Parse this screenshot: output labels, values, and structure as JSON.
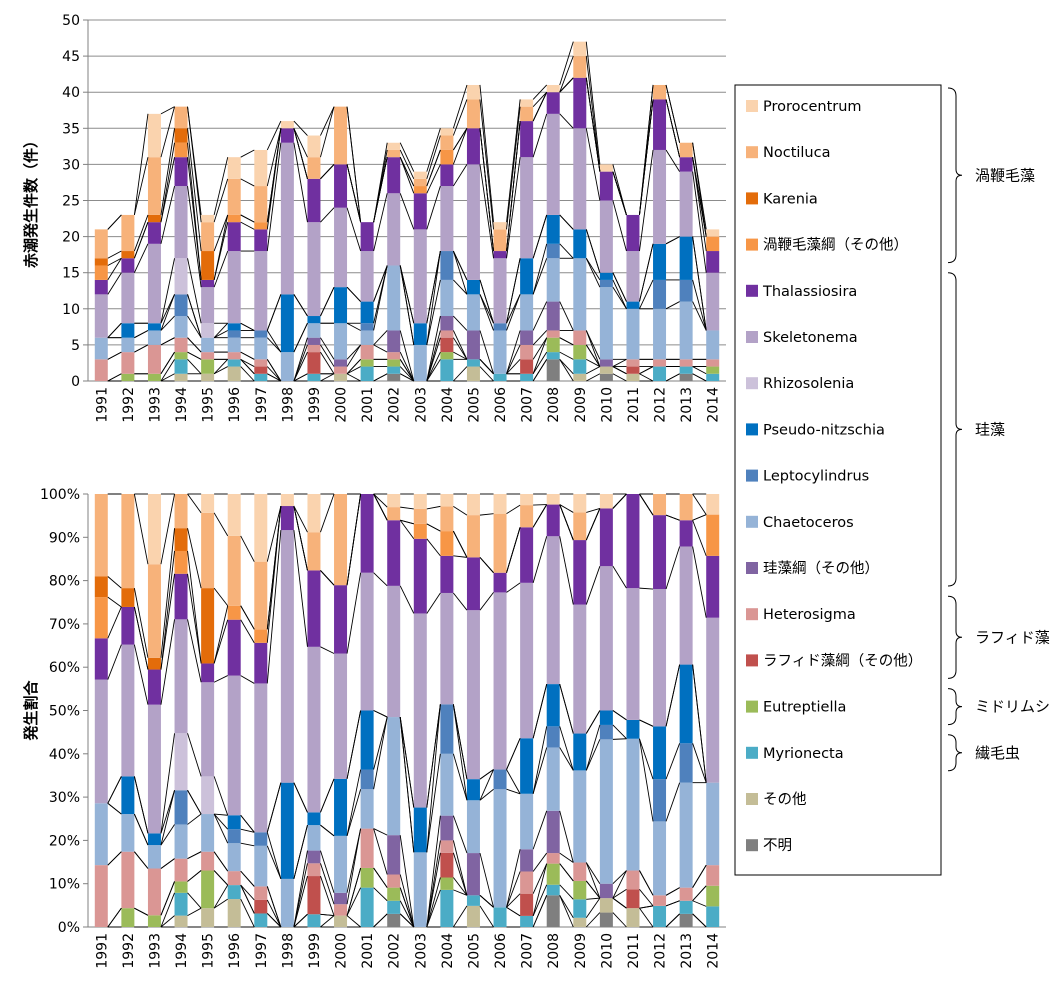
{
  "colors": {
    "Prorocentrum": "#FAD3AE",
    "Noctiluca": "#F7B27A",
    "Karenia": "#E36C0A",
    "渦鞭毛藻綱（その他）": "#F79646",
    "Thalassiosira": "#7030A0",
    "Skeletonema": "#B3A2C7",
    "Rhizosolenia": "#CCC1DA",
    "Pseudo-nitzschia": "#0070C0",
    "Leptocylindrus": "#4F81BD",
    "Chaetoceros": "#95B3D7",
    "珪藻綱（その他）": "#8064A2",
    "Heterosigma": "#DA9694",
    "ラフィド藻綱（その他）": "#C0504D",
    "Eutreptiella": "#9BBB59",
    "Myrionecta": "#4BACC6",
    "その他": "#C4BD97",
    "不明": "#7F7F7F"
  },
  "legend": {
    "items": [
      "Prorocentrum",
      "Noctiluca",
      "Karenia",
      "渦鞭毛藻綱（その他）",
      "Thalassiosira",
      "Skeletonema",
      "Rhizosolenia",
      "Pseudo-nitzschia",
      "Leptocylindrus",
      "Chaetoceros",
      "珪藻綱（その他）",
      "Heterosigma",
      "ラフィド藻綱（その他）",
      "Eutreptiella",
      "Myrionecta",
      "その他",
      "不明"
    ],
    "groups": [
      {
        "label": "渦鞭毛藻",
        "first": 0,
        "last": 3
      },
      {
        "label": "珪藻",
        "first": 4,
        "last": 10
      },
      {
        "label": "ラフィド藻",
        "first": 11,
        "last": 12
      },
      {
        "label": "ミドリムシ",
        "first": 13,
        "last": 13
      },
      {
        "label": "繊毛虫",
        "first": 14,
        "last": 14
      }
    ]
  },
  "chart_data": [
    {
      "type": "bar",
      "stacked": true,
      "ylabel": "赤潮発生件数（件）",
      "ylim": [
        0,
        50
      ],
      "yticks": [
        "0",
        "5",
        "10",
        "15",
        "20",
        "25",
        "30",
        "35",
        "40",
        "45",
        "50"
      ],
      "grid": true,
      "categories": [
        "1991",
        "1992",
        "1993",
        "1994",
        "1995",
        "1996",
        "1997",
        "1998",
        "1999",
        "2000",
        "2001",
        "2002",
        "2003",
        "2004",
        "2005",
        "2006",
        "2007",
        "2008",
        "2009",
        "2010",
        "2011",
        "2012",
        "2013",
        "2014"
      ],
      "series": [
        {
          "name": "不明",
          "values": [
            0,
            0,
            0,
            0,
            0,
            0,
            0,
            0,
            0,
            0,
            0,
            1,
            0,
            0,
            0,
            0,
            0,
            3,
            0,
            1,
            0,
            0,
            1,
            0
          ]
        },
        {
          "name": "その他",
          "values": [
            0,
            0,
            0,
            1,
            1,
            2,
            0,
            0,
            0,
            1,
            0,
            0,
            0,
            0,
            2,
            0,
            0,
            0,
            1,
            1,
            1,
            0,
            0,
            0
          ]
        },
        {
          "name": "Myrionecta",
          "values": [
            0,
            0,
            0,
            2,
            0,
            1,
            1,
            0,
            1,
            0,
            2,
            1,
            0,
            3,
            1,
            1,
            1,
            1,
            2,
            0,
            0,
            2,
            1,
            1
          ]
        },
        {
          "name": "Eutreptiella",
          "values": [
            0,
            1,
            1,
            1,
            2,
            0,
            0,
            0,
            0,
            0,
            1,
            1,
            0,
            1,
            0,
            0,
            0,
            2,
            2,
            0,
            0,
            0,
            0,
            1
          ]
        },
        {
          "name": "ラフィド藻綱（その他）",
          "values": [
            0,
            0,
            0,
            0,
            0,
            0,
            1,
            0,
            3,
            0,
            0,
            0,
            0,
            2,
            0,
            0,
            2,
            0,
            0,
            0,
            1,
            0,
            0,
            0
          ]
        },
        {
          "name": "Heterosigma",
          "values": [
            3,
            3,
            4,
            2,
            1,
            1,
            1,
            0,
            1,
            1,
            2,
            1,
            0,
            1,
            0,
            0,
            2,
            1,
            2,
            0,
            1,
            1,
            1,
            1
          ]
        },
        {
          "name": "珪藻綱（その他）",
          "values": [
            0,
            0,
            0,
            0,
            0,
            0,
            0,
            0,
            1,
            1,
            0,
            3,
            0,
            2,
            4,
            0,
            2,
            4,
            0,
            1,
            0,
            0,
            0,
            0
          ]
        },
        {
          "name": "Chaetoceros",
          "values": [
            3,
            2,
            2,
            3,
            2,
            2,
            3,
            4,
            2,
            5,
            2,
            9,
            5,
            5,
            5,
            6,
            5,
            6,
            10,
            10,
            7,
            7,
            8,
            4
          ]
        },
        {
          "name": "Leptocylindrus",
          "values": [
            0,
            0,
            0,
            3,
            0,
            1,
            1,
            0,
            0,
            0,
            1,
            0,
            0,
            4,
            0,
            1,
            0,
            2,
            0,
            1,
            0,
            4,
            3,
            0
          ]
        },
        {
          "name": "Pseudo-nitzschia",
          "values": [
            0,
            2,
            1,
            0,
            0,
            1,
            0,
            8,
            1,
            5,
            3,
            0,
            3,
            0,
            2,
            0,
            5,
            4,
            4,
            1,
            1,
            5,
            6,
            0
          ]
        },
        {
          "name": "Rhizosolenia",
          "values": [
            0,
            0,
            0,
            5,
            2,
            0,
            0,
            0,
            0,
            0,
            0,
            0,
            0,
            0,
            0,
            0,
            0,
            0,
            0,
            0,
            0,
            0,
            0,
            0
          ]
        },
        {
          "name": "Skeletonema",
          "values": [
            6,
            7,
            11,
            10,
            5,
            10,
            11,
            21,
            13,
            11,
            7,
            10,
            13,
            9,
            16,
            9,
            14,
            14,
            14,
            10,
            7,
            13,
            9,
            8
          ]
        },
        {
          "name": "Thalassiosira",
          "values": [
            2,
            2,
            3,
            4,
            1,
            4,
            3,
            2,
            6,
            6,
            4,
            5,
            5,
            3,
            5,
            1,
            5,
            3,
            7,
            4,
            5,
            7,
            2,
            3
          ]
        },
        {
          "name": "渦鞭毛藻綱（その他）",
          "values": [
            2,
            0,
            0,
            2,
            0,
            1,
            1,
            0,
            0,
            0,
            0,
            0,
            1,
            2,
            0,
            0,
            0,
            0,
            0,
            0,
            0,
            0,
            0,
            2
          ]
        },
        {
          "name": "Karenia",
          "values": [
            1,
            1,
            1,
            2,
            4,
            0,
            0,
            0,
            0,
            0,
            0,
            0,
            0,
            0,
            0,
            0,
            0,
            0,
            0,
            0,
            0,
            0,
            0,
            0
          ]
        },
        {
          "name": "Noctiluca",
          "values": [
            4,
            5,
            8,
            3,
            4,
            5,
            5,
            0,
            3,
            8,
            0,
            1,
            1,
            2,
            4,
            3,
            2,
            0,
            3,
            0,
            0,
            2,
            2,
            0
          ]
        },
        {
          "name": "Prorocentrum",
          "values": [
            0,
            0,
            6,
            0,
            1,
            3,
            5,
            1,
            3,
            0,
            0,
            1,
            1,
            1,
            2,
            1,
            1,
            1,
            2,
            1,
            0,
            0,
            0,
            1
          ]
        }
      ]
    },
    {
      "type": "bar",
      "stacked": true,
      "normalized": true,
      "ylabel": "発生割合",
      "ylim": [
        0,
        100
      ],
      "yticks": [
        "0%",
        "10%",
        "20%",
        "30%",
        "40%",
        "50%",
        "60%",
        "70%",
        "80%",
        "90%",
        "100%"
      ],
      "grid": false,
      "categories": [
        "1991",
        "1992",
        "1993",
        "1994",
        "1995",
        "1996",
        "1997",
        "1998",
        "1999",
        "2000",
        "2001",
        "2002",
        "2003",
        "2004",
        "2005",
        "2006",
        "2007",
        "2008",
        "2009",
        "2010",
        "2011",
        "2012",
        "2013",
        "2014"
      ],
      "series_source": "same as upper chart, shown as percentage of each year's total"
    }
  ]
}
